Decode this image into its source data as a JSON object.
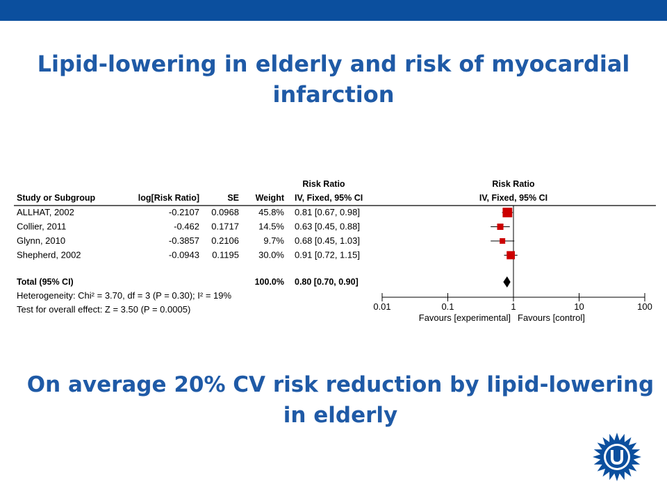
{
  "slide": {
    "title": "Lipid-lowering in elderly and risk of myocardial infarction",
    "conclusion": "On average 20% CV risk reduction by lipid-lowering in elderly",
    "brand_color": "#0b4f9e",
    "title_color": "#1f5aa6",
    "logo_icon": "utrecht-sun-logo-icon"
  },
  "chart_data": {
    "type": "table",
    "subtype": "forest-plot",
    "group_header": "Risk Ratio",
    "columns": [
      "Study or Subgroup",
      "log[Risk Ratio]",
      "SE",
      "Weight",
      "IV, Fixed, 95% CI"
    ],
    "plot_header": "Risk Ratio",
    "plot_subheader": "IV, Fixed, 95% CI",
    "studies": [
      {
        "name": "ALLHAT, 2002",
        "log_rr": "-0.2107",
        "se": "0.0968",
        "weight": "45.8%",
        "ci_text": "0.81 [0.67, 0.98]",
        "rr": 0.81,
        "lo": 0.67,
        "hi": 0.98,
        "w": 45.8
      },
      {
        "name": "Collier, 2011",
        "log_rr": "-0.462",
        "se": "0.1717",
        "weight": "14.5%",
        "ci_text": "0.63 [0.45, 0.88]",
        "rr": 0.63,
        "lo": 0.45,
        "hi": 0.88,
        "w": 14.5
      },
      {
        "name": "Glynn, 2010",
        "log_rr": "-0.3857",
        "se": "0.2106",
        "weight": "9.7%",
        "ci_text": "0.68 [0.45, 1.03]",
        "rr": 0.68,
        "lo": 0.45,
        "hi": 1.03,
        "w": 9.7
      },
      {
        "name": "Shepherd, 2002",
        "log_rr": "-0.0943",
        "se": "0.1195",
        "weight": "30.0%",
        "ci_text": "0.91 [0.72, 1.15]",
        "rr": 0.91,
        "lo": 0.72,
        "hi": 1.15,
        "w": 30.0
      }
    ],
    "total": {
      "name": "Total (95% CI)",
      "weight": "100.0%",
      "ci_text": "0.80 [0.70, 0.90]",
      "rr": 0.8,
      "lo": 0.7,
      "hi": 0.9
    },
    "heterogeneity": "Heterogeneity: Chi² = 3.70, df = 3 (P = 0.30); I² = 19%",
    "overall_effect": "Test for overall effect: Z = 3.50 (P = 0.0005)",
    "x_axis": {
      "scale": "log",
      "ticks": [
        0.01,
        0.1,
        1,
        10,
        100
      ],
      "tick_labels": [
        "0.01",
        "0.1",
        "1",
        "10",
        "100"
      ],
      "left_label": "Favours [experimental]",
      "right_label": "Favours [control]"
    },
    "marker_color": "#cc0000"
  }
}
